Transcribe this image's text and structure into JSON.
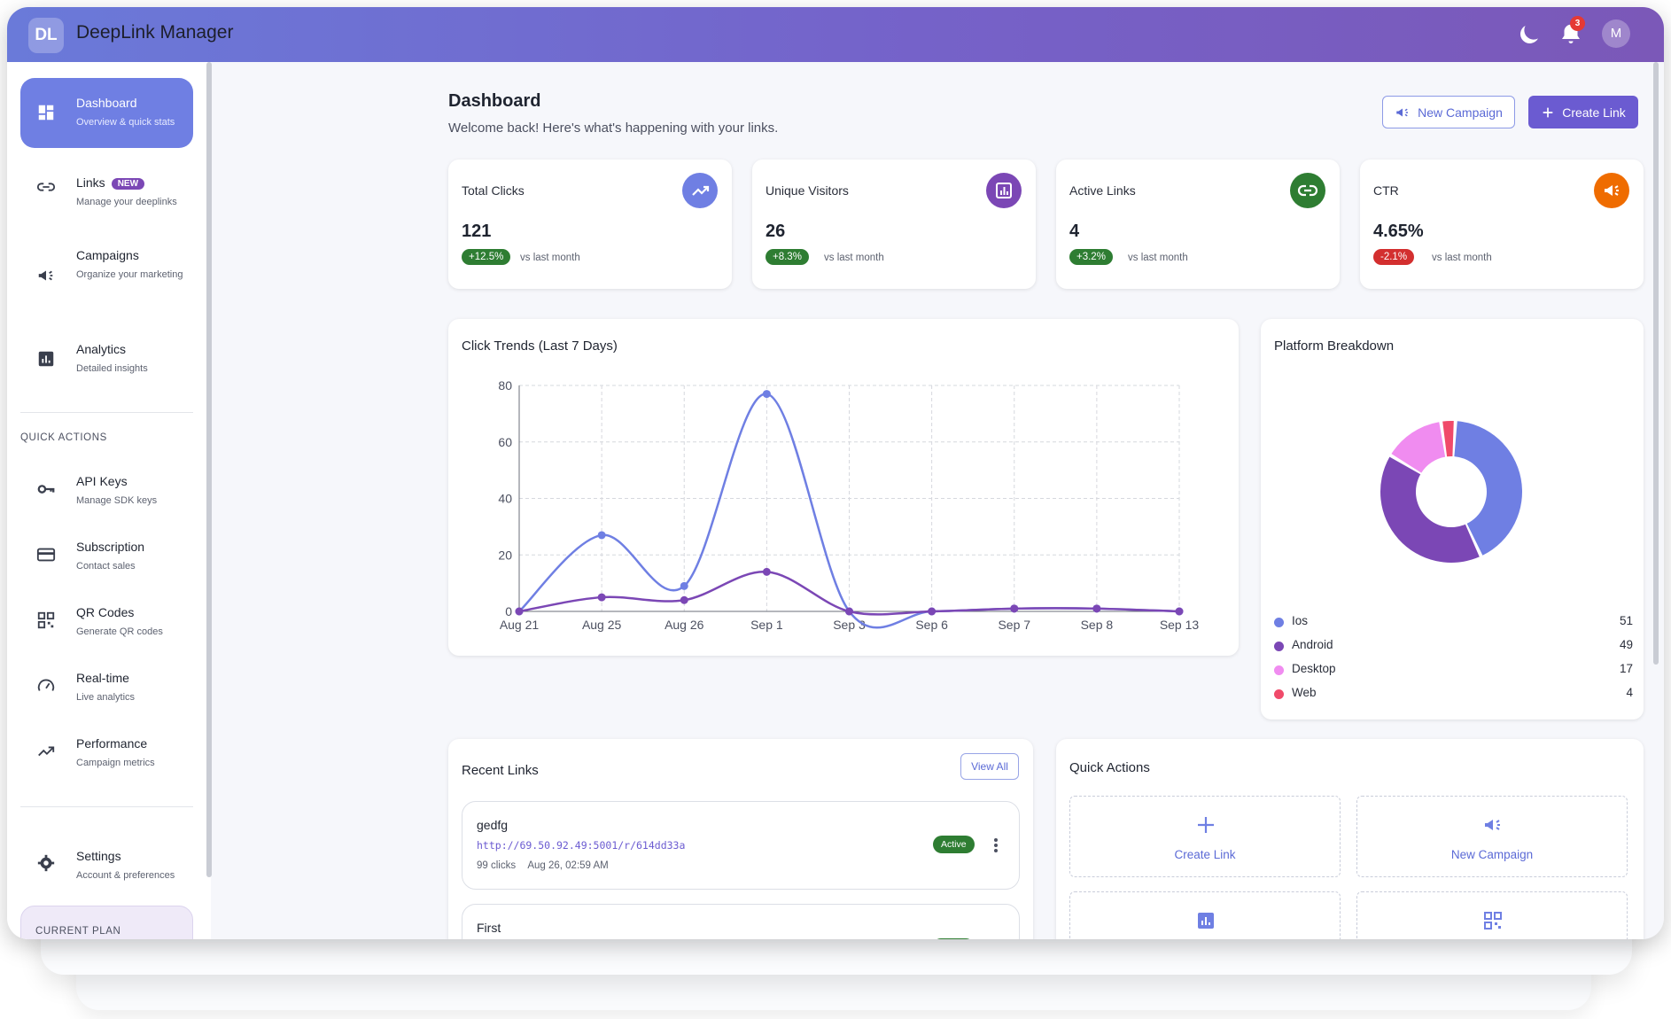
{
  "app": {
    "logo_initials": "DL",
    "title": "DeepLink Manager",
    "notifications_count": "3",
    "user_initial": "M"
  },
  "sidebar": {
    "nav": [
      {
        "label": "Dashboard",
        "sub": "Overview & quick stats",
        "icon": "dashboard-icon",
        "active": true
      },
      {
        "label": "Links",
        "badge": "NEW",
        "sub": "Manage your deeplinks",
        "icon": "link-icon"
      },
      {
        "label": "Campaigns",
        "sub": "Organize your marketing",
        "icon": "megaphone-icon"
      },
      {
        "label": "Analytics",
        "sub": "Detailed insights",
        "icon": "analytics-icon"
      }
    ],
    "quick_actions_label": "QUICK ACTIONS",
    "quick": [
      {
        "label": "API Keys",
        "sub": "Manage SDK keys",
        "icon": "key-icon"
      },
      {
        "label": "Subscription",
        "sub": "Contact sales",
        "icon": "credit-card-icon"
      },
      {
        "label": "QR Codes",
        "sub": "Generate QR codes",
        "icon": "qr-code-icon"
      },
      {
        "label": "Real-time",
        "sub": "Live analytics",
        "icon": "speedometer-icon"
      },
      {
        "label": "Performance",
        "sub": "Campaign metrics",
        "icon": "trending-up-icon"
      }
    ],
    "settings": {
      "label": "Settings",
      "sub": "Account & preferences",
      "icon": "gear-icon"
    },
    "plan_label": "CURRENT PLAN"
  },
  "header": {
    "title": "Dashboard",
    "subtitle": "Welcome back! Here's what's happening with your links.",
    "new_campaign": "New Campaign",
    "create_link": "Create Link"
  },
  "stats": [
    {
      "title": "Total Clicks",
      "value": "121",
      "change": "+12.5%",
      "vs": "vs last month",
      "color": "#6f7fe3",
      "change_color": "#2e7d32"
    },
    {
      "title": "Unique Visitors",
      "value": "26",
      "change": "+8.3%",
      "vs": "vs last month",
      "color": "#7b47b5",
      "change_color": "#2e7d32"
    },
    {
      "title": "Active Links",
      "value": "4",
      "change": "+3.2%",
      "vs": "vs last month",
      "color": "#2e7d32",
      "change_color": "#2e7d32"
    },
    {
      "title": "CTR",
      "value": "4.65%",
      "change": "-2.1%",
      "vs": "vs last month",
      "color": "#ef6c00",
      "change_color": "#d32f2f"
    }
  ],
  "click_trends": {
    "title": "Click Trends (Last 7 Days)",
    "chart_data": {
      "type": "line",
      "x": [
        "Aug 21",
        "Aug 25",
        "Aug 26",
        "Sep 1",
        "Sep 3",
        "Sep 6",
        "Sep 7",
        "Sep 8",
        "Sep 13"
      ],
      "ylim": [
        0,
        80
      ],
      "yticks": [
        0,
        20,
        40,
        60,
        80
      ],
      "grid": true,
      "series": [
        {
          "values": [
            0,
            27,
            9,
            77,
            0,
            0,
            1,
            1,
            0
          ],
          "color": "#6f7fe3"
        },
        {
          "values": [
            0,
            5,
            4,
            14,
            0,
            0,
            1,
            1,
            0
          ],
          "color": "#7b47b5"
        }
      ]
    }
  },
  "platform": {
    "title": "Platform Breakdown",
    "chart_data": {
      "type": "pie",
      "categories": [
        "Ios",
        "Android",
        "Desktop",
        "Web"
      ],
      "values": [
        51,
        49,
        17,
        4
      ],
      "colors": [
        "#6f7fe3",
        "#7b47b5",
        "#f08cf0",
        "#f04a6a"
      ]
    }
  },
  "recent_links": {
    "title": "Recent Links",
    "view_all": "View All",
    "items": [
      {
        "name": "gedfg",
        "url": "http://69.50.92.49:5001/r/614dd33a",
        "clicks": "99 clicks",
        "date": "Aug 26, 02:59 AM",
        "status": "Active"
      },
      {
        "name": "First"
      }
    ]
  },
  "quick_actions": {
    "title": "Quick Actions",
    "tiles": [
      {
        "label": "Create Link",
        "icon": "plus-icon"
      },
      {
        "label": "New Campaign",
        "icon": "megaphone-icon"
      },
      {
        "icon": "analytics-icon"
      },
      {
        "icon": "qr-code-icon"
      }
    ]
  }
}
